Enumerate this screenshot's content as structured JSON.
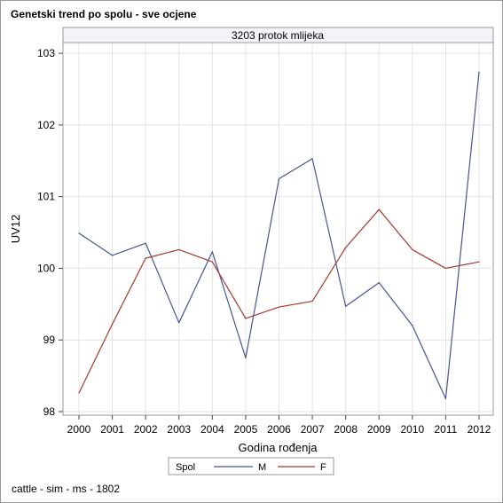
{
  "title": "Genetski trend po spolu - sve ocjene",
  "footer": "cattle - sim - ms - 1802",
  "colors": {
    "M": "#445694",
    "F": "#a23a2e",
    "grid": "#e4e4e4",
    "panel_header_bg": "#f2f4fa"
  },
  "chart_data": {
    "type": "line",
    "panel_label": "3203 protok mlijeka",
    "xlabel": "Godina rođenja",
    "ylabel": "UV12",
    "x": [
      2000,
      2001,
      2002,
      2003,
      2004,
      2005,
      2006,
      2007,
      2008,
      2009,
      2010,
      2011,
      2012
    ],
    "ylim": [
      97.95,
      103.15
    ],
    "yticks": [
      98,
      99,
      100,
      101,
      102,
      103
    ],
    "grid": true,
    "legend": {
      "title": "Spol",
      "placement": "bottom-center"
    },
    "series": [
      {
        "name": "M",
        "values": [
          100.49,
          100.18,
          100.35,
          99.24,
          100.23,
          98.75,
          101.25,
          101.53,
          99.47,
          99.8,
          99.2,
          98.18,
          102.74
        ]
      },
      {
        "name": "F",
        "values": [
          98.26,
          99.22,
          100.14,
          100.26,
          100.09,
          99.3,
          99.46,
          99.54,
          100.29,
          100.82,
          100.26,
          100.0,
          100.09
        ]
      }
    ]
  }
}
